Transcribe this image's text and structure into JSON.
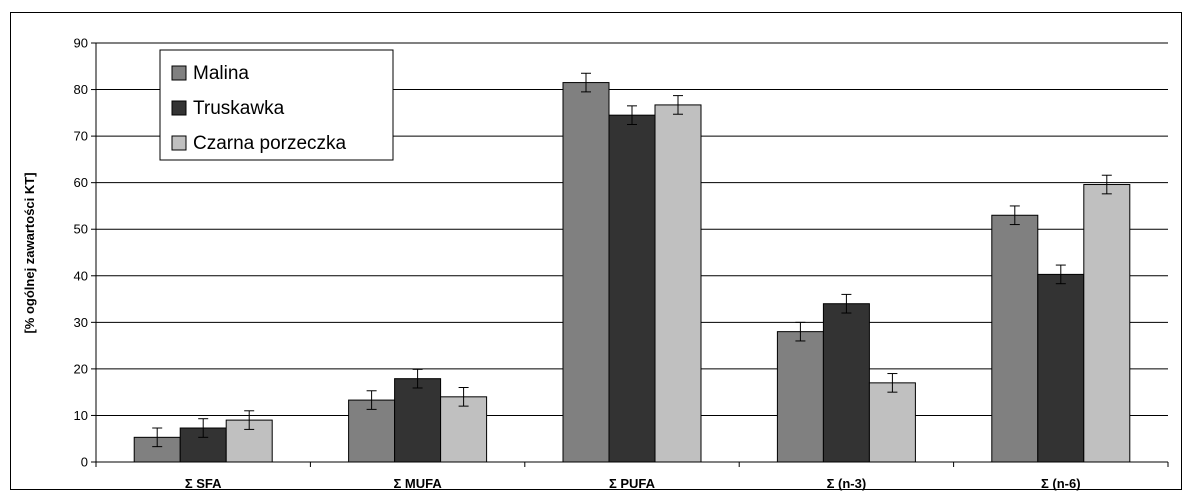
{
  "chart_data": {
    "type": "bar",
    "title": "",
    "xlabel": "",
    "ylabel": "[% ogólnej zawartości KT]",
    "ylim": [
      0,
      90
    ],
    "yticks": [
      0,
      10,
      20,
      30,
      40,
      50,
      60,
      70,
      80,
      90
    ],
    "grid": true,
    "legend_position": "top-left",
    "categories": [
      "Σ SFA",
      "Σ MUFA",
      "Σ PUFA",
      "Σ (n-3)",
      "Σ (n-6)"
    ],
    "series": [
      {
        "name": "Malina",
        "color": "#808080",
        "values": [
          5.3,
          13.3,
          81.5,
          28.0,
          53.0
        ],
        "errors": [
          2.0,
          2.0,
          2.0,
          2.0,
          2.0
        ]
      },
      {
        "name": "Truskawka",
        "color": "#333333",
        "values": [
          7.3,
          17.9,
          74.5,
          34.0,
          40.3
        ],
        "errors": [
          2.0,
          2.0,
          2.0,
          2.0,
          2.0
        ]
      },
      {
        "name": "Czarna porzeczka",
        "color": "#c0c0c0",
        "values": [
          9.0,
          14.0,
          76.7,
          17.0,
          59.6
        ],
        "errors": [
          2.0,
          2.0,
          2.0,
          2.0,
          2.0
        ]
      }
    ]
  }
}
